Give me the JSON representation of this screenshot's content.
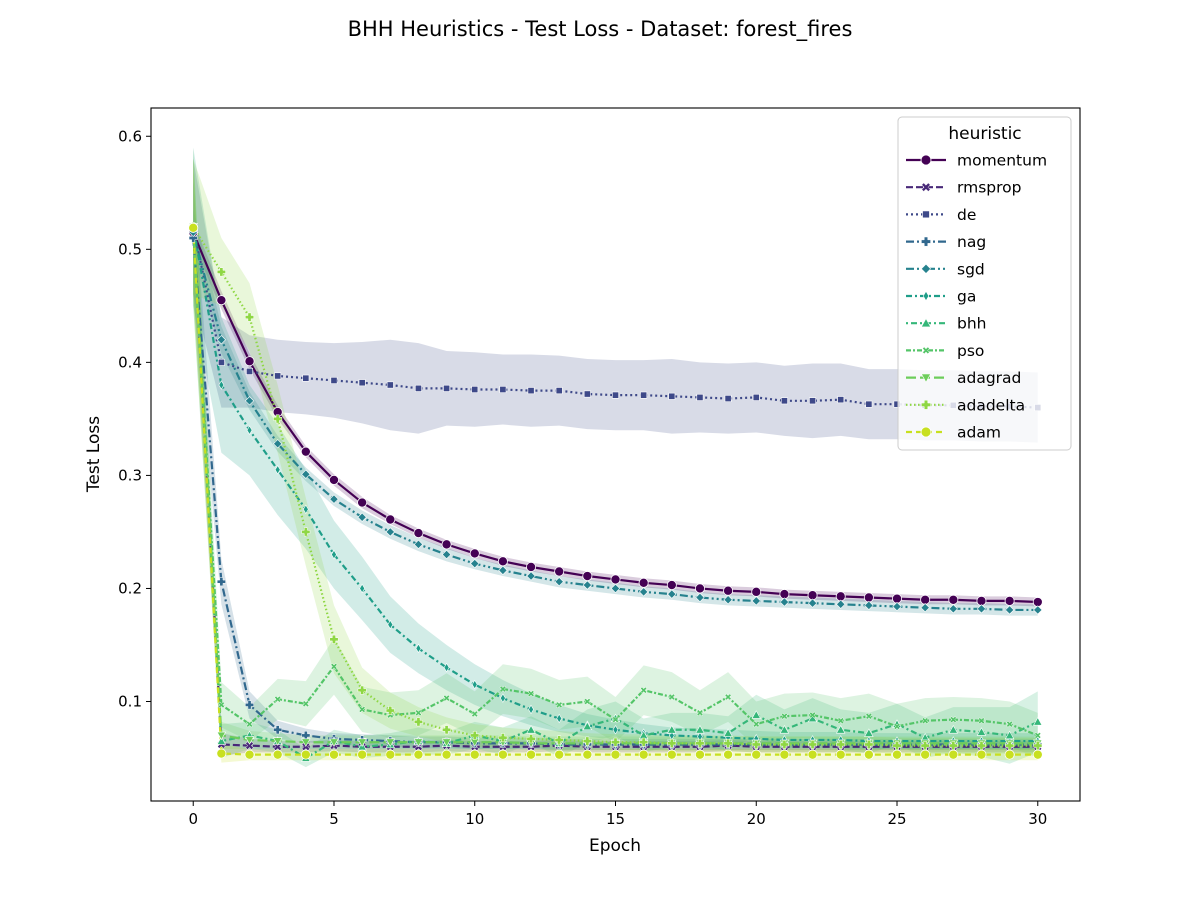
{
  "chart_data": {
    "type": "line",
    "title": "BHH Heuristics - Test Loss - Dataset: forest_fires",
    "xlabel": "Epoch",
    "ylabel": "Test Loss",
    "xlim": [
      -1.5,
      31.5
    ],
    "ylim": [
      0.012,
      0.625
    ],
    "xticks": [
      0,
      5,
      10,
      15,
      20,
      25,
      30
    ],
    "yticks": [
      0.1,
      0.2,
      0.3,
      0.4,
      0.5,
      0.6
    ],
    "xtick_labels": [
      "0",
      "5",
      "10",
      "15",
      "20",
      "25",
      "30"
    ],
    "ytick_labels": [
      "0.1",
      "0.2",
      "0.3",
      "0.4",
      "0.5",
      "0.6"
    ],
    "grid": false,
    "legend": {
      "title": "heuristic",
      "placement": "top-right"
    },
    "x": [
      0,
      1,
      2,
      3,
      4,
      5,
      6,
      7,
      8,
      9,
      10,
      11,
      12,
      13,
      14,
      15,
      16,
      17,
      18,
      19,
      20,
      21,
      22,
      23,
      24,
      25,
      26,
      27,
      28,
      29,
      30
    ],
    "series": [
      {
        "name": "momentum",
        "color": "#440154",
        "dash": "solid",
        "marker": "circle",
        "values": [
          0.515,
          0.455,
          0.401,
          0.356,
          0.321,
          0.296,
          0.276,
          0.261,
          0.249,
          0.239,
          0.231,
          0.224,
          0.219,
          0.215,
          0.211,
          0.208,
          0.205,
          0.203,
          0.2,
          0.198,
          0.197,
          0.195,
          0.194,
          0.193,
          0.192,
          0.191,
          0.19,
          0.19,
          0.189,
          0.189,
          0.188
        ],
        "band": [
          0.01,
          0.008,
          0.007,
          0.006,
          0.005,
          0.005,
          0.005,
          0.004,
          0.004,
          0.004,
          0.004,
          0.004,
          0.004,
          0.004,
          0.004,
          0.004,
          0.004,
          0.004,
          0.004,
          0.004,
          0.004,
          0.004,
          0.004,
          0.004,
          0.004,
          0.004,
          0.004,
          0.004,
          0.004,
          0.004,
          0.004
        ]
      },
      {
        "name": "rmsprop",
        "color": "#482878",
        "dash": "dashed",
        "marker": "x",
        "values": [
          0.52,
          0.062,
          0.061,
          0.06,
          0.06,
          0.061,
          0.06,
          0.06,
          0.06,
          0.061,
          0.06,
          0.06,
          0.06,
          0.061,
          0.06,
          0.06,
          0.06,
          0.06,
          0.06,
          0.061,
          0.06,
          0.06,
          0.06,
          0.06,
          0.06,
          0.06,
          0.06,
          0.06,
          0.06,
          0.06,
          0.06
        ],
        "band": [
          0.05,
          0.01,
          0.006,
          0.005,
          0.005,
          0.005,
          0.005,
          0.005,
          0.005,
          0.005,
          0.005,
          0.005,
          0.005,
          0.005,
          0.005,
          0.005,
          0.005,
          0.005,
          0.005,
          0.005,
          0.005,
          0.005,
          0.005,
          0.005,
          0.005,
          0.005,
          0.005,
          0.005,
          0.005,
          0.005,
          0.005
        ]
      },
      {
        "name": "de",
        "color": "#3e4989",
        "dash": "dotted",
        "marker": "square",
        "values": [
          0.52,
          0.4,
          0.392,
          0.388,
          0.386,
          0.384,
          0.382,
          0.38,
          0.377,
          0.377,
          0.376,
          0.376,
          0.375,
          0.375,
          0.372,
          0.371,
          0.371,
          0.37,
          0.369,
          0.368,
          0.369,
          0.366,
          0.366,
          0.367,
          0.363,
          0.363,
          0.362,
          0.362,
          0.361,
          0.361,
          0.36
        ],
        "band": [
          0.06,
          0.04,
          0.032,
          0.032,
          0.032,
          0.033,
          0.036,
          0.04,
          0.04,
          0.033,
          0.033,
          0.031,
          0.032,
          0.031,
          0.031,
          0.031,
          0.031,
          0.033,
          0.031,
          0.031,
          0.031,
          0.031,
          0.033,
          0.032,
          0.031,
          0.031,
          0.031,
          0.031,
          0.031,
          0.031,
          0.031
        ]
      },
      {
        "name": "nag",
        "color": "#31688e",
        "dash": "dashdot",
        "marker": "plus",
        "values": [
          0.51,
          0.206,
          0.097,
          0.075,
          0.07,
          0.067,
          0.066,
          0.065,
          0.064,
          0.064,
          0.063,
          0.063,
          0.063,
          0.062,
          0.062,
          0.062,
          0.062,
          0.062,
          0.062,
          0.062,
          0.062,
          0.062,
          0.062,
          0.062,
          0.062,
          0.062,
          0.062,
          0.062,
          0.062,
          0.062,
          0.062
        ],
        "band": [
          0.05,
          0.02,
          0.012,
          0.008,
          0.006,
          0.005,
          0.005,
          0.005,
          0.005,
          0.005,
          0.005,
          0.005,
          0.005,
          0.005,
          0.005,
          0.005,
          0.005,
          0.005,
          0.005,
          0.005,
          0.005,
          0.005,
          0.005,
          0.005,
          0.005,
          0.005,
          0.005,
          0.005,
          0.005,
          0.005,
          0.005
        ]
      },
      {
        "name": "sgd",
        "color": "#26828e",
        "dash": "dashdotdot",
        "marker": "diamond",
        "values": [
          0.515,
          0.42,
          0.366,
          0.328,
          0.301,
          0.279,
          0.263,
          0.25,
          0.239,
          0.23,
          0.222,
          0.216,
          0.211,
          0.206,
          0.203,
          0.2,
          0.197,
          0.195,
          0.192,
          0.19,
          0.189,
          0.188,
          0.187,
          0.186,
          0.185,
          0.184,
          0.183,
          0.182,
          0.182,
          0.181,
          0.181
        ],
        "band": [
          0.02,
          0.012,
          0.008,
          0.007,
          0.006,
          0.006,
          0.006,
          0.006,
          0.006,
          0.006,
          0.005,
          0.005,
          0.005,
          0.005,
          0.005,
          0.005,
          0.005,
          0.005,
          0.005,
          0.005,
          0.005,
          0.005,
          0.005,
          0.005,
          0.005,
          0.005,
          0.005,
          0.005,
          0.005,
          0.005,
          0.005
        ]
      },
      {
        "name": "ga",
        "color": "#1f9e89",
        "dash": "dashdot2",
        "marker": "thin-diamond",
        "values": [
          0.52,
          0.38,
          0.34,
          0.305,
          0.27,
          0.23,
          0.2,
          0.168,
          0.147,
          0.13,
          0.115,
          0.103,
          0.093,
          0.085,
          0.079,
          0.075,
          0.072,
          0.07,
          0.069,
          0.068,
          0.067,
          0.066,
          0.066,
          0.066,
          0.065,
          0.065,
          0.065,
          0.065,
          0.065,
          0.065,
          0.065
        ],
        "band": [
          0.07,
          0.06,
          0.04,
          0.04,
          0.035,
          0.03,
          0.028,
          0.025,
          0.022,
          0.02,
          0.018,
          0.016,
          0.014,
          0.012,
          0.01,
          0.009,
          0.008,
          0.007,
          0.007,
          0.007,
          0.007,
          0.007,
          0.007,
          0.007,
          0.007,
          0.007,
          0.007,
          0.007,
          0.007,
          0.007,
          0.007
        ]
      },
      {
        "name": "bhh",
        "color": "#35b779",
        "dash": "dotdash",
        "marker": "triangle-up",
        "values": [
          0.52,
          0.065,
          0.07,
          0.065,
          0.05,
          0.065,
          0.06,
          0.062,
          0.065,
          0.063,
          0.07,
          0.065,
          0.075,
          0.063,
          0.078,
          0.085,
          0.07,
          0.075,
          0.075,
          0.072,
          0.088,
          0.075,
          0.085,
          0.075,
          0.072,
          0.08,
          0.068,
          0.075,
          0.073,
          0.07,
          0.082
        ],
        "band": [
          0.07,
          0.015,
          0.012,
          0.01,
          0.008,
          0.01,
          0.01,
          0.01,
          0.012,
          0.01,
          0.012,
          0.012,
          0.012,
          0.012,
          0.015,
          0.015,
          0.015,
          0.015,
          0.015,
          0.015,
          0.018,
          0.018,
          0.018,
          0.018,
          0.018,
          0.018,
          0.018,
          0.02,
          0.022,
          0.025,
          0.027
        ]
      },
      {
        "name": "pso",
        "color": "#54c568",
        "dash": "dashdot3",
        "marker": "x-small",
        "values": [
          0.52,
          0.097,
          0.08,
          0.102,
          0.098,
          0.131,
          0.093,
          0.088,
          0.09,
          0.103,
          0.089,
          0.111,
          0.107,
          0.097,
          0.1,
          0.084,
          0.11,
          0.104,
          0.09,
          0.104,
          0.08,
          0.087,
          0.088,
          0.083,
          0.087,
          0.078,
          0.083,
          0.084,
          0.083,
          0.08,
          0.07
        ],
        "band": [
          0.06,
          0.02,
          0.015,
          0.018,
          0.02,
          0.025,
          0.02,
          0.02,
          0.02,
          0.022,
          0.02,
          0.022,
          0.022,
          0.022,
          0.022,
          0.02,
          0.022,
          0.022,
          0.02,
          0.022,
          0.02,
          0.02,
          0.02,
          0.02,
          0.02,
          0.02,
          0.02,
          0.02,
          0.02,
          0.02,
          0.02
        ]
      },
      {
        "name": "adagrad",
        "color": "#6ccd5a",
        "dash": "longdash",
        "marker": "triangle-down",
        "values": [
          0.52,
          0.07,
          0.066,
          0.065,
          0.064,
          0.064,
          0.064,
          0.064,
          0.064,
          0.064,
          0.064,
          0.064,
          0.063,
          0.063,
          0.063,
          0.063,
          0.063,
          0.063,
          0.063,
          0.063,
          0.063,
          0.063,
          0.063,
          0.063,
          0.063,
          0.063,
          0.063,
          0.063,
          0.063,
          0.063,
          0.063
        ],
        "band": [
          0.07,
          0.012,
          0.008,
          0.007,
          0.006,
          0.006,
          0.006,
          0.006,
          0.006,
          0.006,
          0.006,
          0.006,
          0.006,
          0.006,
          0.006,
          0.006,
          0.006,
          0.006,
          0.006,
          0.006,
          0.006,
          0.006,
          0.006,
          0.006,
          0.006,
          0.006,
          0.006,
          0.006,
          0.006,
          0.006,
          0.006
        ]
      },
      {
        "name": "adadelta",
        "color": "#8fd744",
        "dash": "dotdot",
        "marker": "plus-filled",
        "values": [
          0.52,
          0.48,
          0.44,
          0.35,
          0.25,
          0.155,
          0.11,
          0.092,
          0.082,
          0.075,
          0.07,
          0.068,
          0.067,
          0.066,
          0.065,
          0.064,
          0.064,
          0.063,
          0.063,
          0.063,
          0.062,
          0.062,
          0.062,
          0.062,
          0.062,
          0.061,
          0.061,
          0.061,
          0.061,
          0.061,
          0.061
        ],
        "band": [
          0.06,
          0.03,
          0.03,
          0.03,
          0.03,
          0.03,
          0.02,
          0.016,
          0.013,
          0.011,
          0.01,
          0.009,
          0.008,
          0.008,
          0.007,
          0.007,
          0.007,
          0.007,
          0.007,
          0.007,
          0.007,
          0.007,
          0.007,
          0.007,
          0.007,
          0.007,
          0.007,
          0.007,
          0.007,
          0.007,
          0.007
        ]
      },
      {
        "name": "adam",
        "color": "#c8e020",
        "dash": "dashed2",
        "marker": "circle",
        "values": [
          0.519,
          0.054,
          0.053,
          0.053,
          0.053,
          0.053,
          0.053,
          0.053,
          0.053,
          0.053,
          0.053,
          0.053,
          0.053,
          0.053,
          0.053,
          0.053,
          0.053,
          0.053,
          0.053,
          0.053,
          0.053,
          0.053,
          0.053,
          0.053,
          0.053,
          0.053,
          0.053,
          0.053,
          0.053,
          0.053,
          0.053
        ],
        "band": [
          0.06,
          0.008,
          0.005,
          0.005,
          0.005,
          0.005,
          0.005,
          0.005,
          0.005,
          0.005,
          0.005,
          0.005,
          0.005,
          0.005,
          0.005,
          0.005,
          0.005,
          0.005,
          0.005,
          0.005,
          0.005,
          0.005,
          0.005,
          0.005,
          0.005,
          0.005,
          0.005,
          0.005,
          0.005,
          0.005,
          0.005
        ]
      }
    ]
  }
}
